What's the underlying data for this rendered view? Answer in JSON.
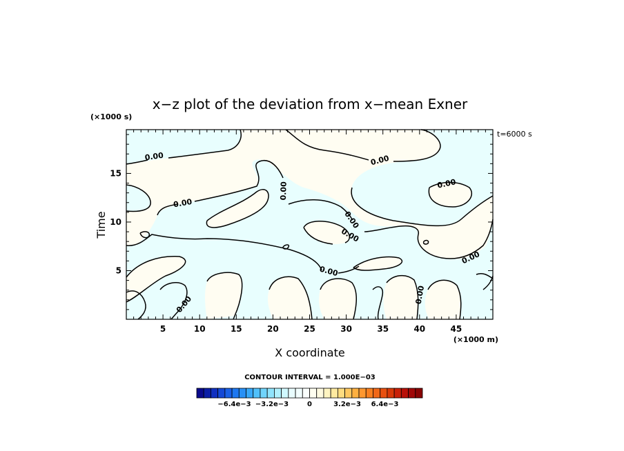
{
  "chart_data": {
    "type": "contour",
    "title": "x−z plot of the deviation from x−mean Exner",
    "xlabel": "X coordinate",
    "ylabel": "Time",
    "x_unit_label": "(×1000 m)",
    "y_unit_label": "(×1000 s)",
    "time_stamp": "t=6000 s",
    "xlim": [
      0,
      50
    ],
    "ylim": [
      0,
      19.5
    ],
    "x_ticks": [
      5,
      10,
      15,
      20,
      25,
      30,
      35,
      40,
      45
    ],
    "y_ticks": [
      5,
      10,
      15
    ],
    "contour_interval_text": "CONTOUR INTERVAL = 1.000E−03",
    "contour_level": 0,
    "contour_labels": [
      {
        "text": "0.00",
        "x": 3.8,
        "y": 16.7,
        "angle": -8
      },
      {
        "text": "0.00",
        "x": 7.7,
        "y": 11.9,
        "angle": -10
      },
      {
        "text": "0.00",
        "x": 21.5,
        "y": 13.2,
        "angle": -88
      },
      {
        "text": "0.00",
        "x": 34.6,
        "y": 16.3,
        "angle": -15
      },
      {
        "text": "0.00",
        "x": 43.7,
        "y": 13.9,
        "angle": -12
      },
      {
        "text": "0.00",
        "x": 30.7,
        "y": 10.2,
        "angle": 55
      },
      {
        "text": "0.00",
        "x": 30.5,
        "y": 8.6,
        "angle": 30
      },
      {
        "text": "0.00",
        "x": 27.6,
        "y": 4.9,
        "angle": 15
      },
      {
        "text": "0.00",
        "x": 7.9,
        "y": 1.5,
        "angle": -50
      },
      {
        "text": "0.00",
        "x": 40.1,
        "y": 2.5,
        "angle": -80
      },
      {
        "text": "0.00",
        "x": 47.0,
        "y": 6.3,
        "angle": -25
      }
    ],
    "colorbar": {
      "tick_labels": [
        "−6.4e−3",
        "−3.2e−3",
        "0",
        "3.2e−3",
        "6.4e−3"
      ],
      "tick_values": [
        -0.0064,
        -0.0032,
        0,
        0.0032,
        0.0064
      ],
      "range": [
        -0.0096,
        0.0096
      ],
      "colors": [
        "#0a0a8c",
        "#0b1ea6",
        "#1030c0",
        "#1448d6",
        "#1a60e6",
        "#1e78f0",
        "#2890f5",
        "#38a8f8",
        "#50c0fa",
        "#70d4fb",
        "#90e4fc",
        "#b0f0fd",
        "#d0f8fe",
        "#e8fcfe",
        "#f2fefe",
        "#fafefc",
        "#fefef0",
        "#fefae0",
        "#fef4c0",
        "#feeaa0",
        "#fedc80",
        "#fec860",
        "#feb040",
        "#fe9830",
        "#f88020",
        "#f06818",
        "#e85010",
        "#d83808",
        "#c82008",
        "#b81008",
        "#a00808",
        "#880404"
      ]
    },
    "legend": "colorbar-bottom",
    "grid": false,
    "fill_colors": {
      "positive": "#fffdf2",
      "negative": "#e8fefe"
    }
  }
}
